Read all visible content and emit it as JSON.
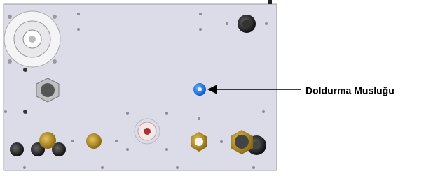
{
  "callout": {
    "label": "Doldurma Musluğu"
  }
}
